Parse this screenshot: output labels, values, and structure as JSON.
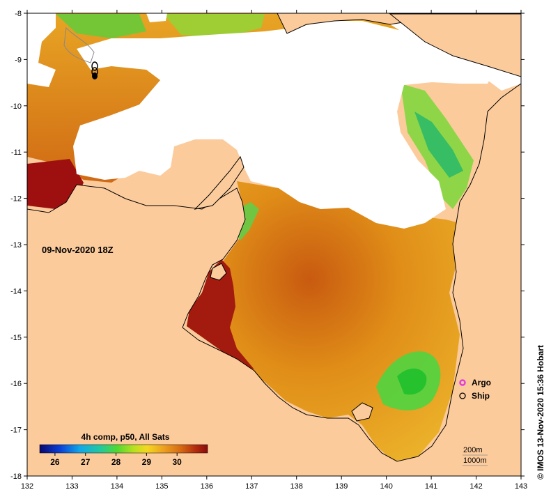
{
  "map": {
    "date_label": "09-Nov-2020 18Z",
    "credit": "© IMOS 13-Nov-2020 15:36 Hobart",
    "colorbar": {
      "title": "4h comp, p50, All Sats",
      "ticks": [
        "26",
        "27",
        "28",
        "29",
        "30"
      ],
      "range": [
        25.5,
        31.0
      ]
    },
    "legend": [
      {
        "label": "Argo",
        "color": "#e23de0"
      },
      {
        "label": "Ship",
        "color": "#000000"
      }
    ],
    "depth_contours": [
      "200m",
      "1000m"
    ],
    "x_axis": {
      "range": [
        132,
        143
      ],
      "ticks": [
        "132",
        "133",
        "134",
        "135",
        "136",
        "137",
        "138",
        "139",
        "140",
        "141",
        "142",
        "143"
      ]
    },
    "y_axis": {
      "range": [
        -18,
        -8
      ],
      "ticks": [
        "-8",
        "-9",
        "-10",
        "-11",
        "-12",
        "-13",
        "-14",
        "-15",
        "-16",
        "-17",
        "-18"
      ]
    },
    "colors": {
      "land": "#fccb9c",
      "cloud": "#ffffff",
      "sst_warm": "#9e1010",
      "sst_orange": "#e07a10",
      "sst_yellow": "#f0c020",
      "sst_green": "#3fcf30"
    }
  }
}
